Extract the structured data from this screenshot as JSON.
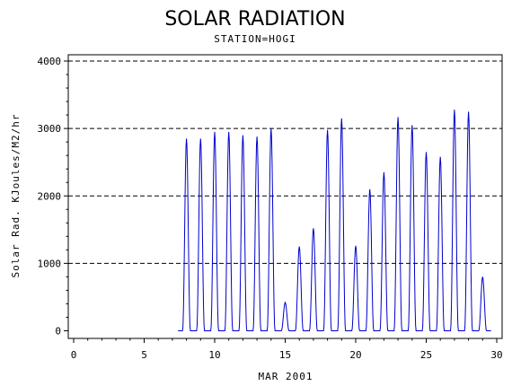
{
  "chart_data": {
    "type": "line",
    "title": "SOLAR RADIATION",
    "subtitle": "STATION=HOGI",
    "xlabel": "MAR 2001",
    "ylabel": "Solar Rad. KJoules/M2/hr",
    "xlim": [
      0,
      30
    ],
    "ylim": [
      0,
      4000
    ],
    "x_ticks": [
      0,
      5,
      10,
      15,
      20,
      25,
      30
    ],
    "y_ticks": [
      0,
      1000,
      2000,
      3000,
      4000
    ],
    "x_tick_labels": [
      "0",
      "5",
      "10",
      "15",
      "20",
      "25",
      "30"
    ],
    "y_tick_labels": [
      "0",
      "1000",
      "2000",
      "3000",
      "4000"
    ],
    "grid": "horizontal dashed at y ticks",
    "line_color": "#0000cc",
    "series": [
      {
        "days": [
          {
            "day": 8,
            "peak": 2850
          },
          {
            "day": 9,
            "peak": 2850
          },
          {
            "day": 10,
            "peak": 2950
          },
          {
            "day": 11,
            "peak": 2950
          },
          {
            "day": 12,
            "peak": 2900
          },
          {
            "day": 13,
            "peak": 2880
          },
          {
            "day": 14,
            "peak": 3000
          },
          {
            "day": 15,
            "peak": 420
          },
          {
            "day": 16,
            "peak": 1250
          },
          {
            "day": 17,
            "peak": 1520
          },
          {
            "day": 18,
            "peak": 2980
          },
          {
            "day": 19,
            "peak": 3150
          },
          {
            "day": 20,
            "peak": 1260
          },
          {
            "day": 21,
            "peak": 2100
          },
          {
            "day": 22,
            "peak": 2350
          },
          {
            "day": 23,
            "peak": 3170
          },
          {
            "day": 24,
            "peak": 3050
          },
          {
            "day": 25,
            "peak": 2650
          },
          {
            "day": 26,
            "peak": 2580
          },
          {
            "day": 27,
            "peak": 3280
          },
          {
            "day": 28,
            "peak": 3250
          },
          {
            "day": 29,
            "peak": 800
          }
        ]
      }
    ]
  }
}
